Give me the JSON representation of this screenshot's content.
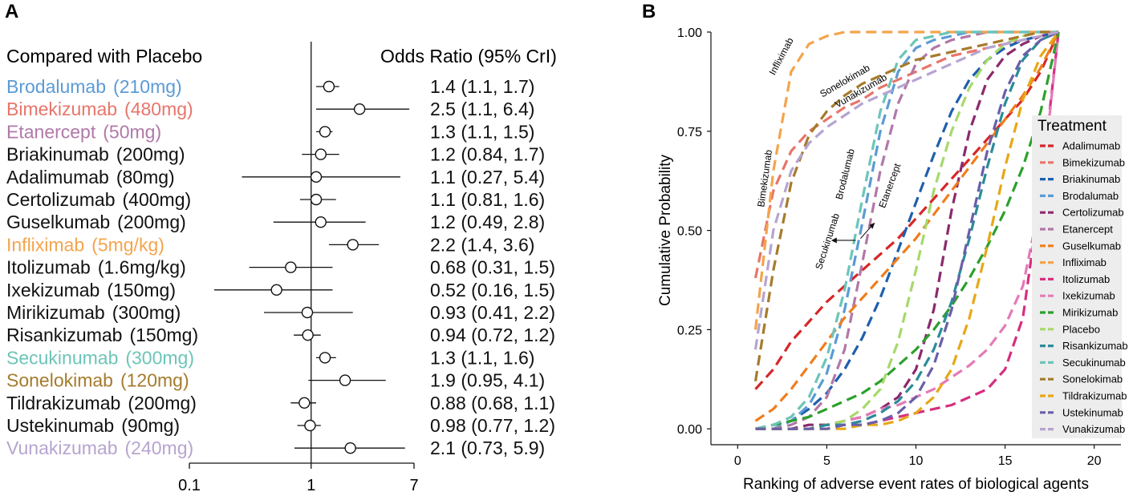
{
  "panel_a": {
    "letter": "A",
    "header_left": "Compared with Placebo",
    "header_right": "Odds Ratio (95% CrI)"
  },
  "panel_b": {
    "letter": "B"
  },
  "chart_data": [
    {
      "type": "forest",
      "title": "Compared with Placebo",
      "value_label": "Odds Ratio (95% CrI)",
      "x_scale": "log",
      "xlim": [
        0.1,
        7
      ],
      "reference_line": 1,
      "x_ticks": [
        "0.1",
        "1",
        "7"
      ],
      "rows": [
        {
          "drug": "Brodalumab",
          "dose": "(210mg)",
          "or": 1.4,
          "lo": 1.1,
          "hi": 1.7,
          "text": "1.4 (1.1, 1.7)",
          "color": "#5b9bd5"
        },
        {
          "drug": "Bimekizumab",
          "dose": "(480mg)",
          "or": 2.5,
          "lo": 1.1,
          "hi": 6.4,
          "text": "2.5 (1.1, 6.4)",
          "color": "#e8756a"
        },
        {
          "drug": "Etanercept",
          "dose": "(50mg)",
          "or": 1.3,
          "lo": 1.1,
          "hi": 1.5,
          "text": "1.3 (1.1, 1.5)",
          "color": "#b178a8"
        },
        {
          "drug": "Briakinumab",
          "dose": "(200mg)",
          "or": 1.2,
          "lo": 0.84,
          "hi": 1.7,
          "text": "1.2 (0.84, 1.7)",
          "color": "#111111"
        },
        {
          "drug": "Adalimumab",
          "dose": "(80mg)",
          "or": 1.1,
          "lo": 0.27,
          "hi": 5.4,
          "text": "1.1 (0.27, 5.4)",
          "color": "#111111"
        },
        {
          "drug": "Certolizumab",
          "dose": "(400mg)",
          "or": 1.1,
          "lo": 0.81,
          "hi": 1.6,
          "text": "1.1 (0.81, 1.6)",
          "color": "#111111"
        },
        {
          "drug": "Guselkumab",
          "dose": "(200mg)",
          "or": 1.2,
          "lo": 0.49,
          "hi": 2.8,
          "text": "1.2 (0.49, 2.8)",
          "color": "#111111"
        },
        {
          "drug": "Infliximab",
          "dose": "(5mg/kg)",
          "or": 2.2,
          "lo": 1.4,
          "hi": 3.6,
          "text": "2.2 (1.4, 3.6)",
          "color": "#f4a44c"
        },
        {
          "drug": "Itolizumab",
          "dose": "(1.6mg/kg)",
          "or": 0.68,
          "lo": 0.31,
          "hi": 1.5,
          "text": "0.68 (0.31, 1.5)",
          "color": "#111111"
        },
        {
          "drug": "Ixekizumab",
          "dose": "(150mg)",
          "or": 0.52,
          "lo": 0.16,
          "hi": 1.5,
          "text": "0.52 (0.16, 1.5)",
          "color": "#111111"
        },
        {
          "drug": "Mirikizumab",
          "dose": "(300mg)",
          "or": 0.93,
          "lo": 0.41,
          "hi": 2.2,
          "text": "0.93 (0.41, 2.2)",
          "color": "#111111"
        },
        {
          "drug": "Risankizumab",
          "dose": "(150mg)",
          "or": 0.94,
          "lo": 0.72,
          "hi": 1.2,
          "text": "0.94 (0.72, 1.2)",
          "color": "#111111"
        },
        {
          "drug": "Secukinumab",
          "dose": "(300mg)",
          "or": 1.3,
          "lo": 1.1,
          "hi": 1.6,
          "text": "1.3 (1.1, 1.6)",
          "color": "#6cc5b8"
        },
        {
          "drug": "Sonelokimab",
          "dose": "(120mg)",
          "or": 1.9,
          "lo": 0.95,
          "hi": 4.1,
          "text": "1.9 (0.95, 4.1)",
          "color": "#a57b2c"
        },
        {
          "drug": "Tildrakizumab",
          "dose": "(200mg)",
          "or": 0.88,
          "lo": 0.68,
          "hi": 1.1,
          "text": "0.88 (0.68, 1.1)",
          "color": "#111111"
        },
        {
          "drug": "Ustekinumab",
          "dose": "(90mg)",
          "or": 0.98,
          "lo": 0.77,
          "hi": 1.2,
          "text": "0.98 (0.77, 1.2)",
          "color": "#111111"
        },
        {
          "drug": "Vunakizumab",
          "dose": "(240mg)",
          "or": 2.1,
          "lo": 0.73,
          "hi": 5.9,
          "text": "2.1 (0.73, 5.9)",
          "color": "#b6a4d0"
        }
      ]
    },
    {
      "type": "line",
      "line_style": "dashed",
      "xlabel": "Ranking of adverse event rates of biological agents",
      "ylabel": "Cumulative Probability",
      "xlim": [
        -1.5,
        21.5
      ],
      "ylim": [
        -0.04,
        1.0
      ],
      "x_ticks": [
        0,
        5,
        10,
        15,
        20
      ],
      "y_ticks": [
        "0.00",
        "0.25",
        "0.50",
        "0.75",
        "1.00"
      ],
      "legend_title": "Treatment",
      "legend_position": "right",
      "grid": false,
      "x": [
        1,
        2,
        3,
        4,
        5,
        6,
        7,
        8,
        9,
        10,
        11,
        12,
        13,
        14,
        15,
        16,
        17,
        18
      ],
      "series": [
        {
          "name": "Adalimumab",
          "color": "#d62728",
          "values": [
            0.1,
            0.15,
            0.22,
            0.27,
            0.32,
            0.36,
            0.4,
            0.44,
            0.48,
            0.53,
            0.58,
            0.63,
            0.68,
            0.73,
            0.78,
            0.83,
            0.9,
            1.0
          ]
        },
        {
          "name": "Bimekizumab",
          "color": "#e8756a",
          "values": [
            0.38,
            0.6,
            0.7,
            0.75,
            0.78,
            0.81,
            0.83,
            0.86,
            0.88,
            0.9,
            0.92,
            0.94,
            0.95,
            0.96,
            0.97,
            0.98,
            0.99,
            1.0
          ]
        },
        {
          "name": "Briakinumab",
          "color": "#1f5fad",
          "values": [
            0.0,
            0.01,
            0.02,
            0.05,
            0.09,
            0.15,
            0.23,
            0.33,
            0.45,
            0.57,
            0.69,
            0.8,
            0.88,
            0.93,
            0.96,
            0.98,
            0.99,
            1.0
          ]
        },
        {
          "name": "Brodalumab",
          "color": "#5b9bd5",
          "values": [
            0.0,
            0.0,
            0.02,
            0.06,
            0.14,
            0.3,
            0.52,
            0.75,
            0.9,
            0.96,
            0.98,
            0.99,
            1.0,
            1.0,
            1.0,
            1.0,
            1.0,
            1.0
          ]
        },
        {
          "name": "Certolizumab",
          "color": "#8b2a6e",
          "values": [
            0.0,
            0.0,
            0.0,
            0.01,
            0.01,
            0.02,
            0.03,
            0.05,
            0.08,
            0.15,
            0.3,
            0.55,
            0.75,
            0.88,
            0.94,
            0.97,
            0.99,
            1.0
          ]
        },
        {
          "name": "Etanercept",
          "color": "#b178a8",
          "values": [
            0.0,
            0.0,
            0.01,
            0.03,
            0.08,
            0.2,
            0.42,
            0.65,
            0.82,
            0.92,
            0.96,
            0.98,
            0.99,
            1.0,
            1.0,
            1.0,
            1.0,
            1.0
          ]
        },
        {
          "name": "Guselkumab",
          "color": "#f07d1c",
          "values": [
            0.02,
            0.05,
            0.1,
            0.16,
            0.22,
            0.28,
            0.33,
            0.38,
            0.43,
            0.48,
            0.54,
            0.6,
            0.66,
            0.72,
            0.78,
            0.84,
            0.91,
            1.0
          ]
        },
        {
          "name": "Infliximab",
          "color": "#f4a44c",
          "values": [
            0.25,
            0.65,
            0.9,
            0.97,
            0.99,
            1.0,
            1.0,
            1.0,
            1.0,
            1.0,
            1.0,
            1.0,
            1.0,
            1.0,
            1.0,
            1.0,
            1.0,
            1.0
          ]
        },
        {
          "name": "Itolizumab",
          "color": "#d62f7f",
          "values": [
            0.0,
            0.0,
            0.0,
            0.0,
            0.01,
            0.01,
            0.01,
            0.02,
            0.03,
            0.04,
            0.05,
            0.06,
            0.08,
            0.1,
            0.15,
            0.28,
            0.6,
            1.0
          ]
        },
        {
          "name": "Ixekizumab",
          "color": "#e47ab8",
          "values": [
            0.0,
            0.0,
            0.0,
            0.0,
            0.01,
            0.02,
            0.03,
            0.05,
            0.06,
            0.08,
            0.1,
            0.13,
            0.16,
            0.2,
            0.26,
            0.36,
            0.58,
            1.0
          ]
        },
        {
          "name": "Mirikizumab",
          "color": "#2ca02c",
          "values": [
            0.0,
            0.01,
            0.02,
            0.03,
            0.05,
            0.07,
            0.09,
            0.12,
            0.16,
            0.2,
            0.25,
            0.31,
            0.38,
            0.46,
            0.55,
            0.66,
            0.8,
            1.0
          ]
        },
        {
          "name": "Placebo",
          "color": "#a6d96a",
          "values": [
            0.0,
            0.0,
            0.0,
            0.0,
            0.01,
            0.02,
            0.05,
            0.1,
            0.22,
            0.4,
            0.6,
            0.75,
            0.86,
            0.93,
            0.97,
            0.99,
            1.0,
            1.0
          ]
        },
        {
          "name": "Risankizumab",
          "color": "#2b8c99",
          "values": [
            0.0,
            0.0,
            0.0,
            0.0,
            0.01,
            0.01,
            0.02,
            0.04,
            0.07,
            0.12,
            0.2,
            0.32,
            0.48,
            0.66,
            0.82,
            0.93,
            0.98,
            1.0
          ]
        },
        {
          "name": "Secukinumab",
          "color": "#6cc5b8",
          "values": [
            0.0,
            0.01,
            0.03,
            0.08,
            0.18,
            0.35,
            0.58,
            0.8,
            0.93,
            0.98,
            0.99,
            1.0,
            1.0,
            1.0,
            1.0,
            1.0,
            1.0,
            1.0
          ]
        },
        {
          "name": "Sonelokimab",
          "color": "#a57b2c",
          "values": [
            0.12,
            0.4,
            0.62,
            0.74,
            0.8,
            0.84,
            0.87,
            0.89,
            0.91,
            0.93,
            0.94,
            0.95,
            0.96,
            0.97,
            0.98,
            0.99,
            1.0,
            1.0
          ]
        },
        {
          "name": "Tildrakizumab",
          "color": "#e6a817",
          "values": [
            0.0,
            0.0,
            0.0,
            0.0,
            0.0,
            0.0,
            0.01,
            0.01,
            0.02,
            0.04,
            0.08,
            0.15,
            0.28,
            0.46,
            0.66,
            0.83,
            0.94,
            1.0
          ]
        },
        {
          "name": "Ustekinumab",
          "color": "#6a5fa8",
          "values": [
            0.0,
            0.0,
            0.0,
            0.0,
            0.0,
            0.01,
            0.01,
            0.02,
            0.04,
            0.08,
            0.16,
            0.3,
            0.5,
            0.7,
            0.85,
            0.94,
            0.98,
            1.0
          ]
        },
        {
          "name": "Vunakizumab",
          "color": "#b6a4d0",
          "values": [
            0.2,
            0.5,
            0.65,
            0.72,
            0.76,
            0.79,
            0.82,
            0.84,
            0.86,
            0.88,
            0.9,
            0.92,
            0.94,
            0.96,
            0.97,
            0.98,
            0.99,
            1.0
          ]
        }
      ],
      "annotations": [
        {
          "text": "Infliximab",
          "x": 2.6,
          "y": 0.935,
          "angle": -62
        },
        {
          "text": "Sonelokimab",
          "x": 6.1,
          "y": 0.87,
          "angle": -30
        },
        {
          "text": "Vunakizumab",
          "x": 7.0,
          "y": 0.845,
          "angle": -30
        },
        {
          "text": "Bimekizumab",
          "x": 1.7,
          "y": 0.63,
          "angle": -82
        },
        {
          "text": "Brodalumab",
          "x": 6.2,
          "y": 0.64,
          "angle": -76
        },
        {
          "text": "Etanercept",
          "x": 8.7,
          "y": 0.61,
          "angle": -70
        },
        {
          "text": "Secukinumab",
          "x": 5.2,
          "y": 0.47,
          "angle": -72
        }
      ]
    }
  ]
}
